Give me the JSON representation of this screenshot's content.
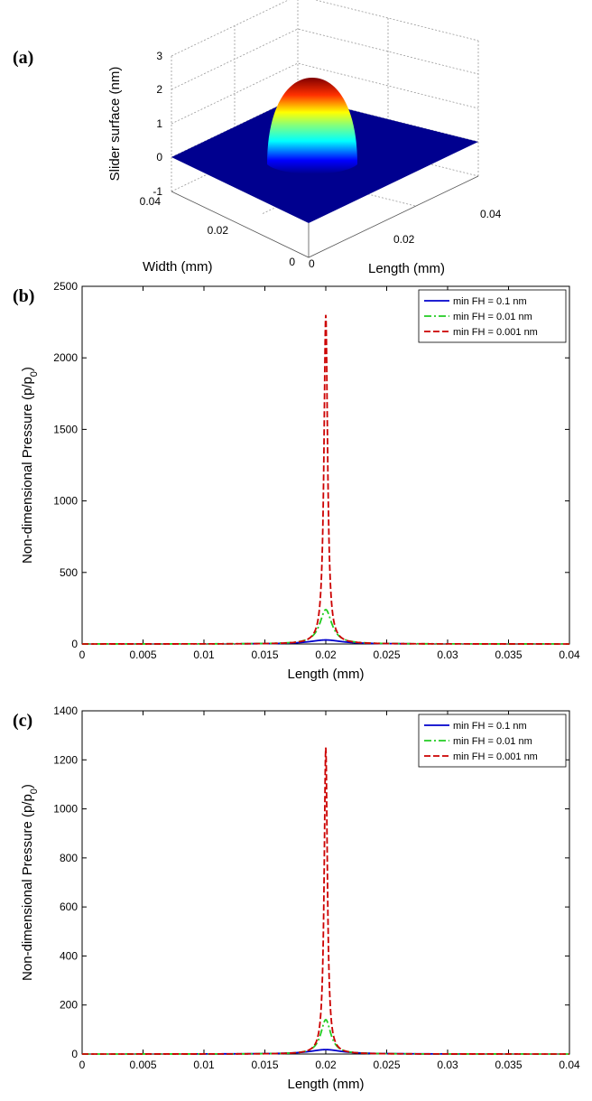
{
  "chart_data": [
    {
      "panel": "(a)",
      "type": "surface",
      "zlabel": "Slider surface (nm)",
      "xlabel": "Length (mm)",
      "ylabel": "Width (mm)",
      "zticks": [
        "3",
        "2",
        "1",
        "0",
        "-1"
      ],
      "xticks": [
        "0",
        "0.02",
        "0.04"
      ],
      "yticks": [
        "0",
        "0.02",
        "0.04"
      ],
      "xlim": [
        0,
        0.04
      ],
      "ylim": [
        0,
        0.04
      ],
      "zlim": [
        -1,
        3
      ],
      "peak": {
        "x": 0.02,
        "y": 0.02,
        "z": 2.3
      },
      "grid": true
    },
    {
      "panel": "(b)",
      "type": "line",
      "xlabel": "Length (mm)",
      "ylabel": "Non-dimensional Pressure (p/p",
      "ylabel_sub": "0",
      "ylabel_end": ")",
      "xlim": [
        0,
        0.04
      ],
      "ylim": [
        0,
        2500
      ],
      "xticks": [
        "0",
        "0.005",
        "0.01",
        "0.015",
        "0.02",
        "0.025",
        "0.03",
        "0.035",
        "0.04"
      ],
      "yticks": [
        "0",
        "500",
        "1000",
        "1500",
        "2000",
        "2500"
      ],
      "legend_position": "top-right",
      "series": [
        {
          "name": "min FH = 0.1 nm",
          "color": "#0000cc",
          "dash": "solid",
          "peak": 28,
          "width": 0.0016,
          "x_start": 0.013,
          "x_end": 0.027
        },
        {
          "name": "min FH = 0.01 nm",
          "color": "#22cc22",
          "dash": "dashdot",
          "peak": 240,
          "width": 0.0006,
          "x_start": 0.0,
          "x_end": 0.04
        },
        {
          "name": "min FH = 0.001 nm",
          "color": "#cc0000",
          "dash": "dashed",
          "peak": 2300,
          "width": 0.00018,
          "x_start": 0.0,
          "x_end": 0.04
        }
      ]
    },
    {
      "panel": "(c)",
      "type": "line",
      "xlabel": "Length (mm)",
      "ylabel": "Non-dimensional Pressure (p/p",
      "ylabel_sub": "0",
      "ylabel_end": ")",
      "xlim": [
        0,
        0.04
      ],
      "ylim": [
        0,
        1400
      ],
      "xticks": [
        "0",
        "0.005",
        "0.01",
        "0.015",
        "0.02",
        "0.025",
        "0.03",
        "0.035",
        "0.04"
      ],
      "yticks": [
        "0",
        "200",
        "400",
        "600",
        "800",
        "1000",
        "1200",
        "1400"
      ],
      "legend_position": "top-right",
      "series": [
        {
          "name": "min FH = 0.1 nm",
          "color": "#0000cc",
          "dash": "solid",
          "peak": 18,
          "width": 0.0016,
          "x_start": 0.009,
          "x_end": 0.031
        },
        {
          "name": "min FH = 0.01 nm",
          "color": "#22cc22",
          "dash": "dashdot",
          "peak": 140,
          "width": 0.0005,
          "x_start": 0.0,
          "x_end": 0.04
        },
        {
          "name": "min FH = 0.001 nm",
          "color": "#cc0000",
          "dash": "dashed",
          "peak": 1250,
          "width": 0.00016,
          "x_start": 0.0,
          "x_end": 0.04
        }
      ]
    }
  ]
}
